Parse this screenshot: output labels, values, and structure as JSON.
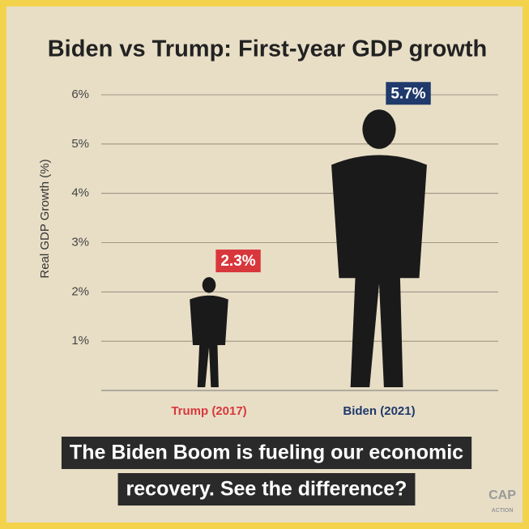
{
  "chart_data": {
    "type": "figure-bar",
    "title": "Biden vs Trump: First-year GDP growth",
    "y_label": "Real GDP Growth (%)",
    "categories": [
      "Trump (2017)",
      "Biden (2021)"
    ],
    "values": [
      2.3,
      5.7
    ],
    "value_labels": [
      "2.3%",
      "5.7%"
    ],
    "colors": [
      "#d8373c",
      "#1f3a6b"
    ],
    "ylim": [
      0,
      6
    ],
    "yticks": [
      {
        "value": 1,
        "label": "1%"
      },
      {
        "value": 2,
        "label": "2%"
      },
      {
        "value": 3,
        "label": "3%"
      },
      {
        "value": 4,
        "label": "4%"
      },
      {
        "value": 5,
        "label": "5%"
      },
      {
        "value": 6,
        "label": "6%"
      }
    ],
    "grid": true,
    "caption": [
      "The Biden Boom is fueling our economic",
      "recovery. See the difference?"
    ],
    "logo": [
      "CAP",
      "ACTION"
    ]
  }
}
